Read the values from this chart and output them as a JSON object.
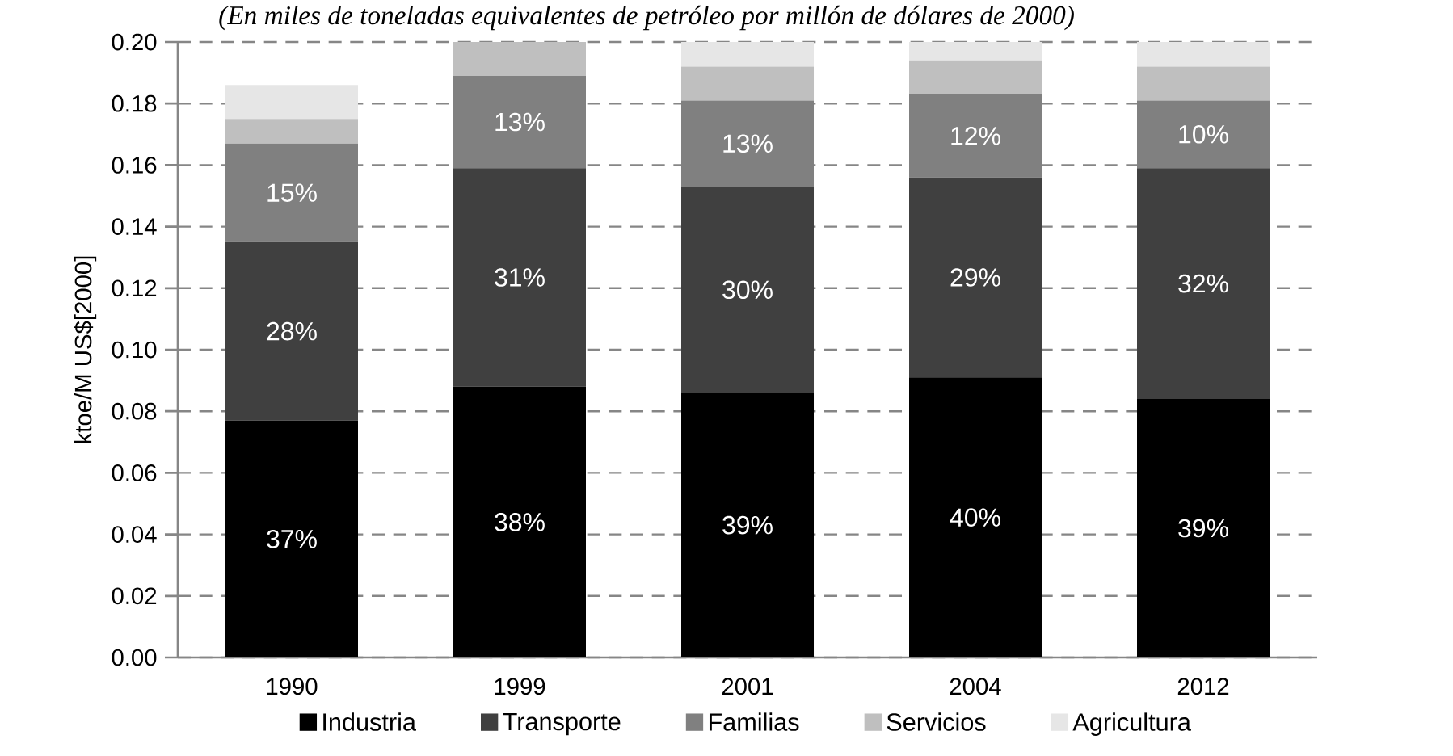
{
  "chart_data": {
    "type": "bar",
    "stacked": true,
    "title": "(En miles de toneladas equivalentes de petróleo por millón de dólares de 2000)",
    "ylabel": "ktoe/M US$[2000]",
    "categories": [
      "1990",
      "1999",
      "2001",
      "2004",
      "2012"
    ],
    "series": [
      {
        "name": "Industria",
        "color": "#000000",
        "values": [
          0.077,
          0.088,
          0.086,
          0.091,
          0.084
        ]
      },
      {
        "name": "Transporte",
        "color": "#404040",
        "values": [
          0.058,
          0.071,
          0.067,
          0.065,
          0.075
        ]
      },
      {
        "name": "Familias",
        "color": "#808080",
        "values": [
          0.032,
          0.03,
          0.028,
          0.027,
          0.022
        ]
      },
      {
        "name": "Servicios",
        "color": "#bfbfbf",
        "values": [
          0.008,
          0.011,
          0.011,
          0.011,
          0.011
        ]
      },
      {
        "name": "Agricultura",
        "color": "#e6e6e6",
        "values": [
          0.011,
          null,
          0.008,
          0.006,
          0.008
        ]
      }
    ],
    "annotations": [
      "37%",
      "38%",
      "39%",
      "40%",
      "39%",
      "28%",
      "31%",
      "30%",
      "29%",
      "32%",
      "15%",
      "13%",
      "13%",
      "12%",
      "10%"
    ],
    "ylim": [
      0,
      0.2
    ],
    "yticks": [
      {
        "value": 0,
        "label": "0.00"
      },
      {
        "value": 0.02,
        "label": "0.02"
      },
      {
        "value": 0.04,
        "label": "0.04"
      },
      {
        "value": 0.06,
        "label": "0.06"
      },
      {
        "value": 0.08,
        "label": "0.08"
      },
      {
        "value": 0.1,
        "label": "0.10"
      },
      {
        "value": 0.12,
        "label": "0.12"
      },
      {
        "value": 0.14,
        "label": "0.14"
      },
      {
        "value": 0.16,
        "label": "0.16"
      },
      {
        "value": 0.18,
        "label": "0.18"
      },
      {
        "value": 0.2,
        "label": "0.20"
      }
    ],
    "grid": "y",
    "legend": "bottom"
  }
}
